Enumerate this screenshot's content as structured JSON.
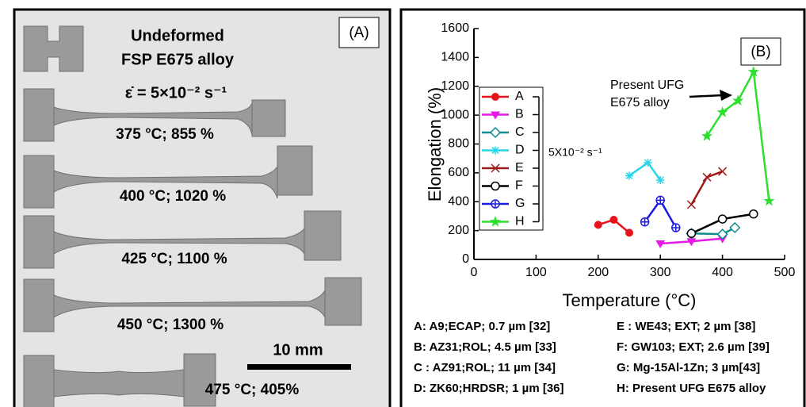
{
  "panel_a": {
    "label": "(A)",
    "title_lines": [
      "Undeformed",
      "FSP E675 alloy"
    ],
    "rate": "ε̇ = 5×10⁻² s⁻¹",
    "specimens": [
      "375 °C; 855 %",
      "400 °C; 1020 %",
      "425 °C; 1100 %",
      "450 °C; 1300 %",
      "475 °C; 405%"
    ],
    "scale_bar": "10 mm"
  },
  "chart_data": {
    "type": "line",
    "panel_label": "(B)",
    "x_label": "Temperature (°C)",
    "y_label": "Elongation (%)",
    "xlim": [
      0,
      500
    ],
    "xticks": [
      0,
      100,
      200,
      300,
      400,
      500
    ],
    "ylim": [
      0,
      1600
    ],
    "yticks": [
      0,
      200,
      400,
      600,
      800,
      1000,
      1200,
      1400,
      1600
    ],
    "series": [
      {
        "name": "A",
        "color": "#e8141c",
        "marker": "circle",
        "x": [
          200,
          225,
          250
        ],
        "values": [
          240,
          275,
          185
        ]
      },
      {
        "name": "B",
        "color": "#e619e6",
        "marker": "triangle-down",
        "x": [
          300,
          350,
          400
        ],
        "values": [
          110,
          125,
          145
        ]
      },
      {
        "name": "C",
        "color": "#0f8c8c",
        "marker": "diamond",
        "x": [
          350,
          400,
          420
        ],
        "values": [
          180,
          175,
          220
        ]
      },
      {
        "name": "D",
        "color": "#25d7e8",
        "marker": "asterisk",
        "x": [
          250,
          280,
          300
        ],
        "values": [
          580,
          670,
          550
        ]
      },
      {
        "name": "E",
        "color": "#9e1a1a",
        "marker": "cross",
        "x": [
          350,
          375,
          400
        ],
        "values": [
          380,
          570,
          610
        ]
      },
      {
        "name": "F",
        "color": "#000000",
        "marker": "open-circle",
        "x": [
          350,
          400,
          450
        ],
        "values": [
          180,
          280,
          315
        ]
      },
      {
        "name": "G",
        "color": "#1a1ae0",
        "marker": "circle-plus",
        "x": [
          275,
          300,
          325
        ],
        "values": [
          260,
          410,
          220
        ]
      },
      {
        "name": "H",
        "color": "#2de02d",
        "marker": "star",
        "x": [
          375,
          400,
          425,
          450,
          475
        ],
        "values": [
          855,
          1020,
          1100,
          1300,
          405
        ]
      }
    ],
    "rate_label": "5X10⁻² s⁻¹",
    "annotation_lines": [
      "Present UFG",
      "E675 alloy"
    ],
    "notes": [
      "A: A9;ECAP; 0.7 µm [32]",
      "B: AZ31;ROL; 4.5 µm [33]",
      "C : AZ91;ROL; 11 µm [34]",
      "D: ZK60;HRDSR; 1 µm [36]",
      "E   : WE43; EXT; 2 µm [38]",
      "F: GW103; EXT; 2.6 µm [39]",
      "G: Mg-15Al-1Zn; 3 µm[43]",
      "H: Present UFG E675 alloy"
    ]
  }
}
